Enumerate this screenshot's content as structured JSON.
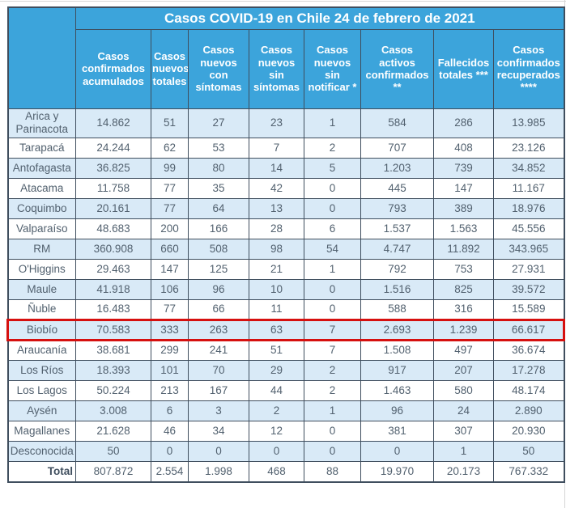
{
  "colors": {
    "header_bg": "#3ca4db",
    "header_text": "#ffffff",
    "row_alt_bg": "#d9eaf7",
    "row_bg": "#ffffff",
    "border": "#3f4e5e",
    "cell_text": "#52616f",
    "highlight_border": "#d6100f"
  },
  "chart_data": {
    "type": "table",
    "title": "Casos COVID-19 en Chile 24 de febrero de 2021",
    "row_header": "",
    "columns": [
      "Casos confirmados acumulados",
      "Casos nuevos totales",
      "Casos nuevos con síntomas",
      "Casos nuevos sin síntomas",
      "Casos nuevos sin notificar *",
      "Casos activos confirmados **",
      "Fallecidos totales ***",
      "Casos confirmados recuperados ****"
    ],
    "highlighted_region": "Biobío",
    "rows": [
      {
        "region": "Arica y Parinacota",
        "values": [
          14862,
          51,
          27,
          23,
          1,
          584,
          286,
          13985
        ]
      },
      {
        "region": "Tarapacá",
        "values": [
          24244,
          62,
          53,
          7,
          2,
          707,
          408,
          23126
        ]
      },
      {
        "region": "Antofagasta",
        "values": [
          36825,
          99,
          80,
          14,
          5,
          1203,
          739,
          34852
        ]
      },
      {
        "region": "Atacama",
        "values": [
          11758,
          77,
          35,
          42,
          0,
          445,
          147,
          11167
        ]
      },
      {
        "region": "Coquimbo",
        "values": [
          20161,
          77,
          64,
          13,
          0,
          793,
          389,
          18976
        ]
      },
      {
        "region": "Valparaíso",
        "values": [
          48683,
          200,
          166,
          28,
          6,
          1537,
          1563,
          45556
        ]
      },
      {
        "region": "RM",
        "values": [
          360908,
          660,
          508,
          98,
          54,
          4747,
          11892,
          343965
        ]
      },
      {
        "region": "O'Higgins",
        "values": [
          29463,
          147,
          125,
          21,
          1,
          792,
          753,
          27931
        ]
      },
      {
        "region": "Maule",
        "values": [
          41918,
          106,
          96,
          10,
          0,
          1516,
          825,
          39572
        ]
      },
      {
        "region": "Ñuble",
        "values": [
          16483,
          77,
          66,
          11,
          0,
          588,
          316,
          15589
        ]
      },
      {
        "region": "Biobío",
        "values": [
          70583,
          333,
          263,
          63,
          7,
          2693,
          1239,
          66617
        ]
      },
      {
        "region": "Araucanía",
        "values": [
          38681,
          299,
          241,
          51,
          7,
          1508,
          497,
          36674
        ]
      },
      {
        "region": "Los Ríos",
        "values": [
          18393,
          101,
          70,
          29,
          2,
          917,
          207,
          17278
        ]
      },
      {
        "region": "Los Lagos",
        "values": [
          50224,
          213,
          167,
          44,
          2,
          1463,
          580,
          48174
        ]
      },
      {
        "region": "Aysén",
        "values": [
          3008,
          6,
          3,
          2,
          1,
          96,
          24,
          2890
        ]
      },
      {
        "region": "Magallanes",
        "values": [
          21628,
          46,
          34,
          12,
          0,
          381,
          307,
          20930
        ]
      },
      {
        "region": "Desconocida",
        "values": [
          50,
          0,
          0,
          0,
          0,
          0,
          1,
          50
        ]
      }
    ],
    "total": {
      "label": "Total",
      "values": [
        807872,
        2554,
        1998,
        468,
        88,
        19970,
        20173,
        767332
      ]
    },
    "number_format": "thousands separated by dots (es-CL)"
  }
}
